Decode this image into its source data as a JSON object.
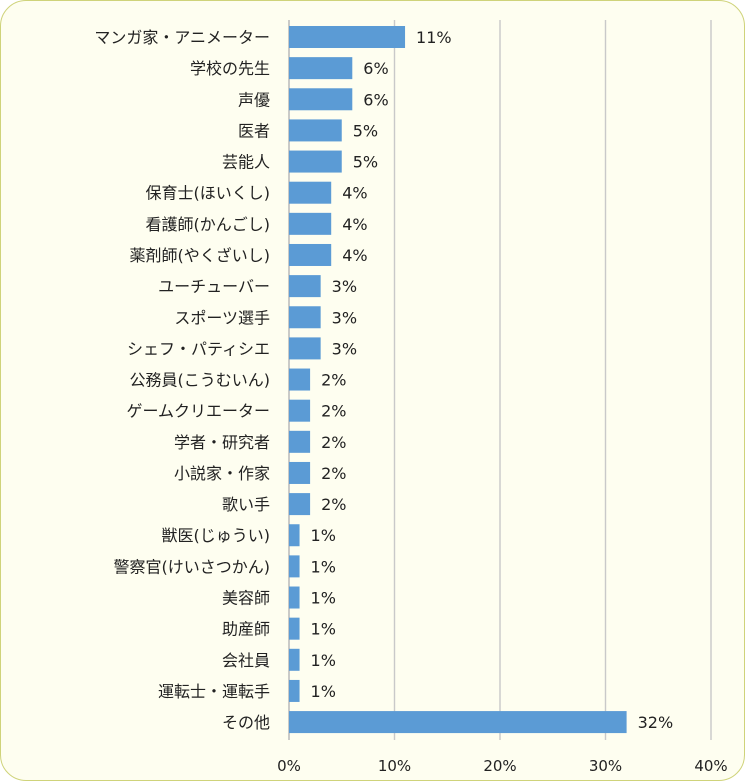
{
  "chart_data": {
    "type": "bar",
    "orientation": "horizontal",
    "categories": [
      "マンガ家・アニメーター",
      "学校の先生",
      "声優",
      "医者",
      "芸能人",
      "保育士(ほいくし)",
      "看護師(かんごし)",
      "薬剤師(やくざいし)",
      "ユーチューバー",
      "スポーツ選手",
      "シェフ・パティシエ",
      "公務員(こうむいん)",
      "ゲームクリエーター",
      "学者・研究者",
      "小説家・作家",
      "歌い手",
      "獣医(じゅうい)",
      "警察官(けいさつかん)",
      "美容師",
      "助産師",
      "会社員",
      "運転士・運転手",
      "その他"
    ],
    "values": [
      11,
      6,
      6,
      5,
      5,
      4,
      4,
      4,
      3,
      3,
      3,
      2,
      2,
      2,
      2,
      2,
      1,
      1,
      1,
      1,
      1,
      1,
      32
    ],
    "value_labels": [
      "11%",
      "6%",
      "6%",
      "5%",
      "5%",
      "4%",
      "4%",
      "4%",
      "3%",
      "3%",
      "3%",
      "2%",
      "2%",
      "2%",
      "2%",
      "2%",
      "1%",
      "1%",
      "1%",
      "1%",
      "1%",
      "1%",
      "32%"
    ],
    "x_ticks": [
      "0%",
      "10%",
      "20%",
      "30%",
      "40%"
    ],
    "x_tick_values": [
      0,
      10,
      20,
      30,
      40
    ],
    "xlim": [
      0,
      40
    ],
    "grid": true,
    "legend": "none",
    "title": "",
    "xlabel": "",
    "ylabel": "",
    "colors": {
      "bar": "#5b9bd5",
      "background": "#fefef0",
      "border": "#cfd37a",
      "grid": "#c9c9c9",
      "text": "#222222"
    }
  }
}
